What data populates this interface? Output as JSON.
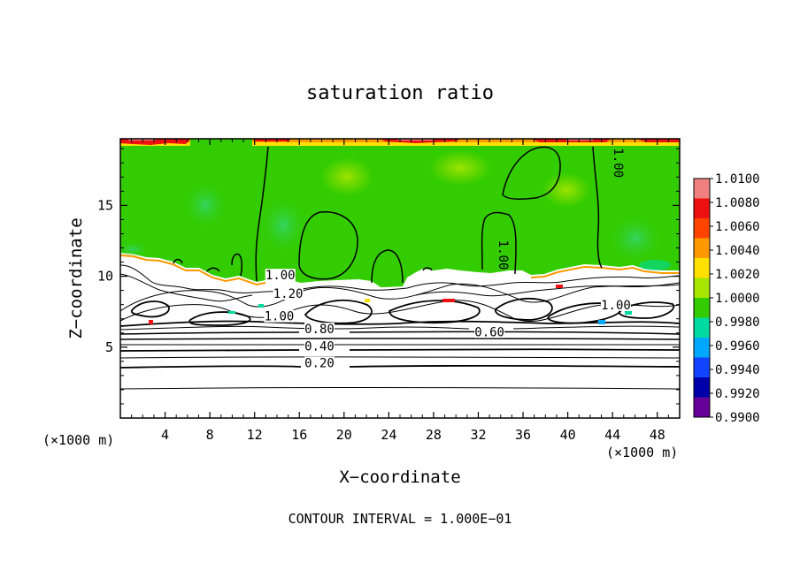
{
  "chart_data": {
    "type": "heatmap",
    "title": "saturation ratio",
    "xlabel": "X−coordinate",
    "ylabel": "Z−coordinate",
    "x_unit": "(×1000 m)",
    "y_unit": "(×1000 m)",
    "xlim": [
      0,
      50
    ],
    "ylim": [
      0,
      19.7
    ],
    "x_ticks": [
      4,
      8,
      12,
      16,
      20,
      24,
      28,
      32,
      36,
      40,
      44,
      48
    ],
    "y_ticks": [
      5,
      10,
      15
    ],
    "contour_interval_note": "CONTOUR INTERVAL = 1.000E−01",
    "colorbar": {
      "levels": [
        "1.0100",
        "1.0080",
        "1.0060",
        "1.0040",
        "1.0020",
        "1.0000",
        "0.9980",
        "0.9960",
        "0.9940",
        "0.9920",
        "0.9900"
      ],
      "colors": [
        "#f08080",
        "#ee1111",
        "#ff4400",
        "#ff9900",
        "#ffe000",
        "#a6e600",
        "#33cc00",
        "#00d9a0",
        "#00a8ff",
        "#1144ff",
        "#0000aa",
        "#660099"
      ]
    },
    "contour_labels": [
      {
        "text": "0.20",
        "x": 17.8,
        "z": 3.7
      },
      {
        "text": "0.40",
        "x": 17.8,
        "z": 4.9
      },
      {
        "text": "0.80",
        "x": 17.8,
        "z": 6.1
      },
      {
        "text": "0.60",
        "x": 33.0,
        "z": 5.9
      },
      {
        "text": "1.00",
        "x": 14.3,
        "z": 9.9
      },
      {
        "text": "1.20",
        "x": 15.0,
        "z": 8.6
      },
      {
        "text": "1.00",
        "x": 14.2,
        "z": 7.0
      },
      {
        "text": "1.00",
        "x": 34.0,
        "z": 11.5
      },
      {
        "text": "1.00",
        "x": 44.3,
        "z": 18.0
      },
      {
        "text": "1.00",
        "x": 44.3,
        "z": 7.8
      }
    ],
    "regions": {
      "saturated_layer": {
        "value": 1.0,
        "z_bottom": 9.5,
        "z_top": 19.7
      },
      "top_band": {
        "value_max": 1.01,
        "z": 19.3
      },
      "horizontal_contours_z": [
        2.2,
        3.7,
        4.4,
        4.9,
        5.3,
        5.7,
        6.1,
        6.4,
        6.7
      ]
    }
  }
}
